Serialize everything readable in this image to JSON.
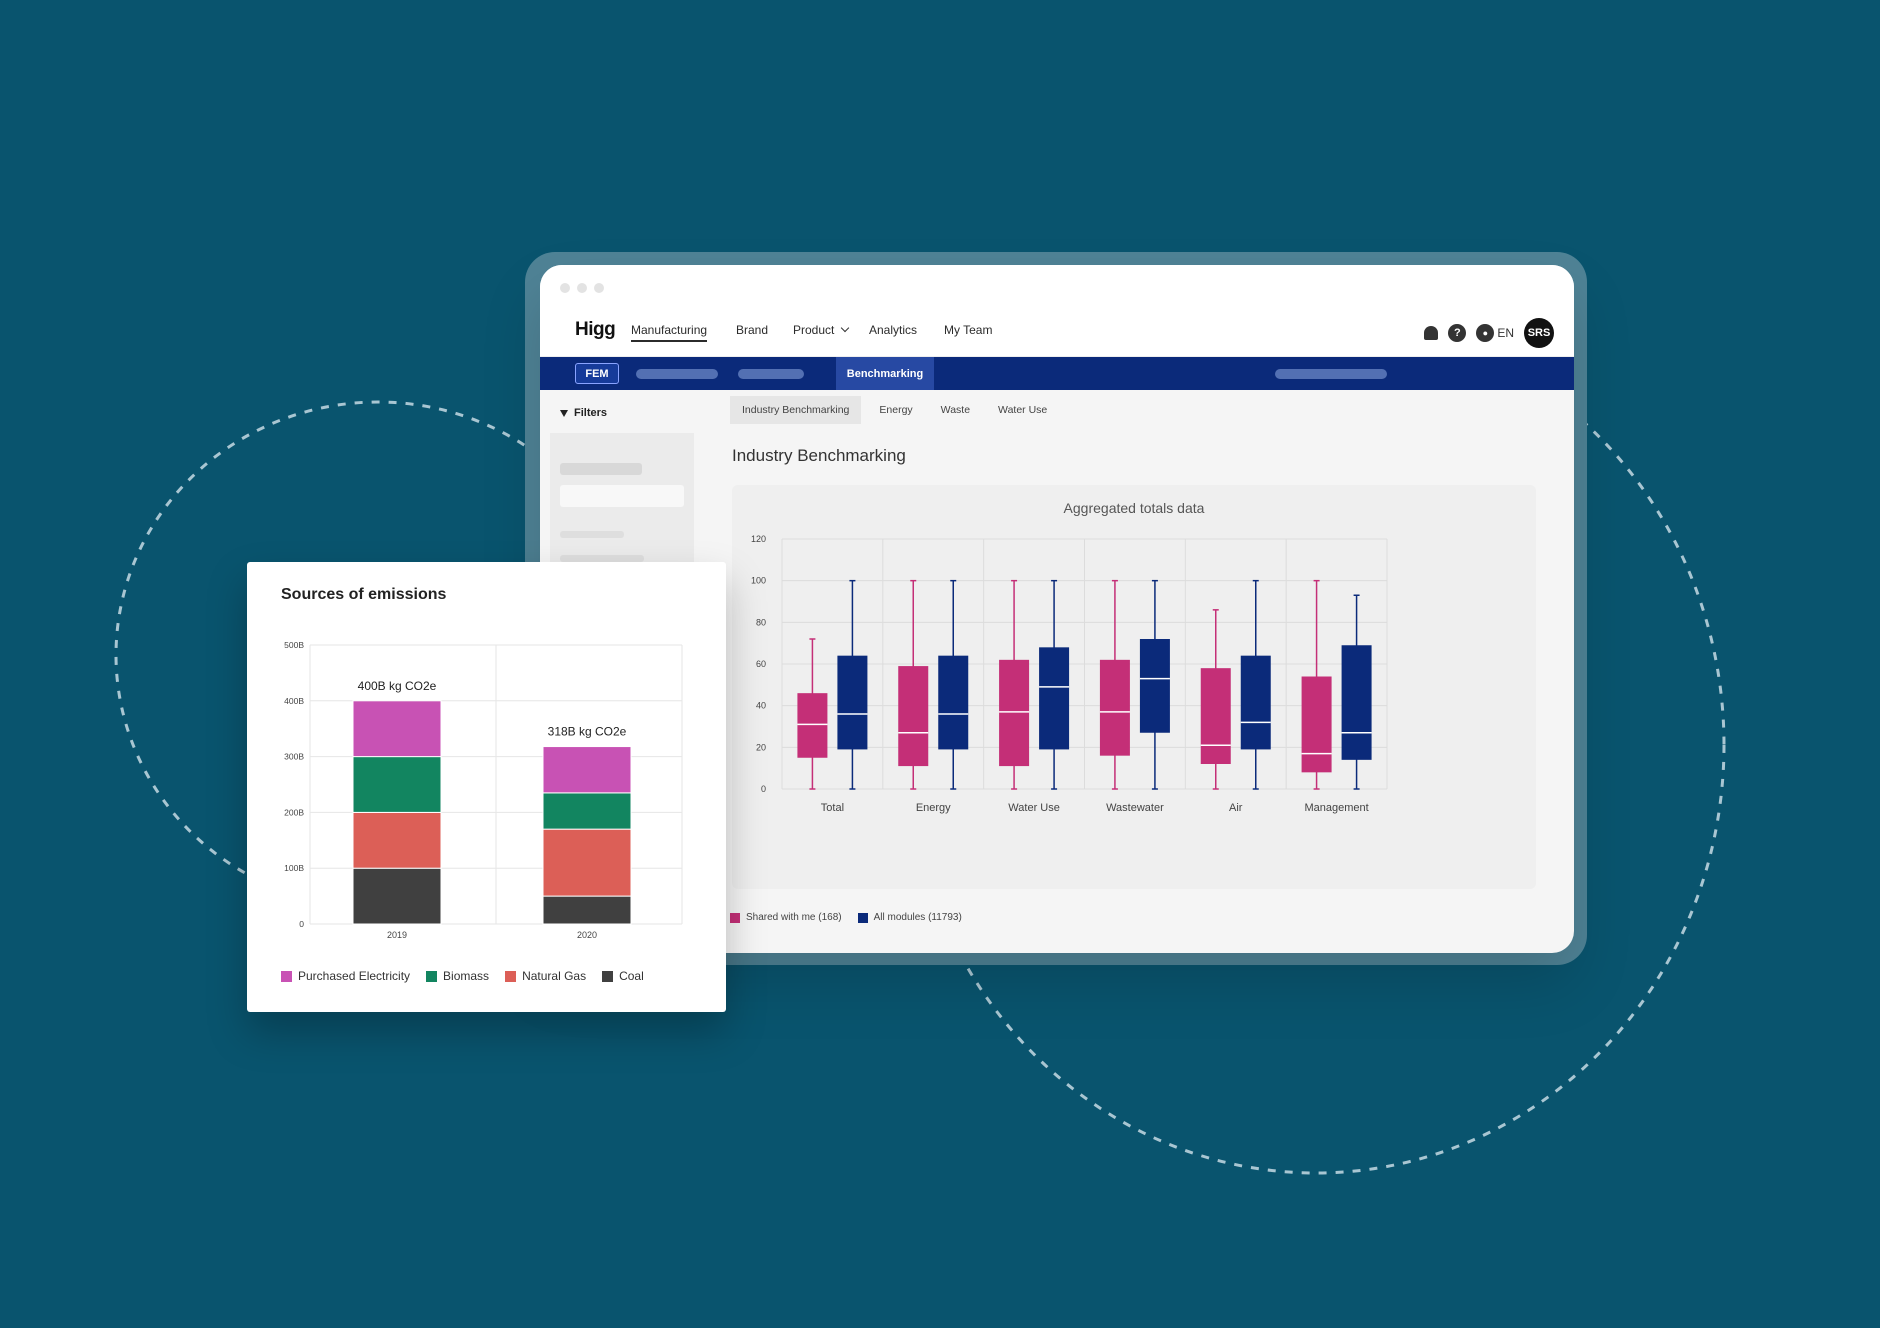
{
  "nav": {
    "logo": "Higg",
    "items": [
      "Manufacturing",
      "Brand",
      "Product",
      "Analytics",
      "My Team"
    ],
    "language": "EN",
    "avatar": "SRS",
    "help_icon_text": "?"
  },
  "subnav": {
    "fem_label": "FEM",
    "active_tab": "Benchmarking"
  },
  "filters_label": "Filters",
  "tabs": [
    "Industry Benchmarking",
    "Energy",
    "Waste",
    "Water Use"
  ],
  "page_title": "Industry Benchmarking",
  "benchmark_chart": {
    "title": "Aggregated totals data",
    "legend": [
      "Shared with me (168)",
      "All modules (11793)"
    ]
  },
  "emissions_card": {
    "title": "Sources of emissions",
    "legend": [
      "Purchased Electricity",
      "Biomass",
      "Natural Gas",
      "Coal"
    ]
  },
  "colors": {
    "magenta": "#c42f77",
    "navy": "#0b2a7a",
    "electricity": "#c852b4",
    "biomass": "#128560",
    "natural_gas": "#dc5f57",
    "coal": "#404040"
  },
  "chart_data": [
    {
      "type": "box",
      "title": "Aggregated totals data",
      "categories": [
        "Total",
        "Energy",
        "Water Use",
        "Wastewater",
        "Air",
        "Management"
      ],
      "ylim": [
        0,
        120
      ],
      "yticks": [
        0,
        20,
        40,
        60,
        80,
        100,
        120
      ],
      "series": [
        {
          "name": "Shared with me (168)",
          "color": "#c42f77",
          "boxes": [
            {
              "min": 0,
              "q1": 15,
              "median": 31,
              "q3": 46,
              "max": 72
            },
            {
              "min": 0,
              "q1": 11,
              "median": 27,
              "q3": 59,
              "max": 100
            },
            {
              "min": 0,
              "q1": 11,
              "median": 37,
              "q3": 62,
              "max": 100
            },
            {
              "min": 0,
              "q1": 16,
              "median": 37,
              "q3": 62,
              "max": 100
            },
            {
              "min": 0,
              "q1": 12,
              "median": 21,
              "q3": 58,
              "max": 86
            },
            {
              "min": 0,
              "q1": 8,
              "median": 17,
              "q3": 54,
              "max": 100
            }
          ]
        },
        {
          "name": "All modules (11793)",
          "color": "#0b2a7a",
          "boxes": [
            {
              "min": 0,
              "q1": 19,
              "median": 36,
              "q3": 64,
              "max": 100
            },
            {
              "min": 0,
              "q1": 19,
              "median": 36,
              "q3": 64,
              "max": 100
            },
            {
              "min": 0,
              "q1": 19,
              "median": 49,
              "q3": 68,
              "max": 100
            },
            {
              "min": 0,
              "q1": 27,
              "median": 53,
              "q3": 72,
              "max": 100
            },
            {
              "min": 0,
              "q1": 19,
              "median": 32,
              "q3": 64,
              "max": 100
            },
            {
              "min": 0,
              "q1": 14,
              "median": 27,
              "q3": 69,
              "max": 93
            }
          ]
        }
      ]
    },
    {
      "type": "bar",
      "stacked": true,
      "title": "Sources of emissions",
      "categories": [
        "2019",
        "2020"
      ],
      "ylim": [
        0,
        500
      ],
      "ytick_labels": [
        "0",
        "100B",
        "200B",
        "300B",
        "400B",
        "500B"
      ],
      "series": [
        {
          "name": "Coal",
          "color": "#404040",
          "values": [
            100,
            50
          ]
        },
        {
          "name": "Natural Gas",
          "color": "#dc5f57",
          "values": [
            100,
            120
          ]
        },
        {
          "name": "Biomass",
          "color": "#128560",
          "values": [
            100,
            65
          ]
        },
        {
          "name": "Purchased Electricity",
          "color": "#c852b4",
          "values": [
            100,
            83
          ]
        }
      ],
      "total_labels": [
        "400B kg CO2e",
        "318B kg CO2e"
      ]
    }
  ]
}
